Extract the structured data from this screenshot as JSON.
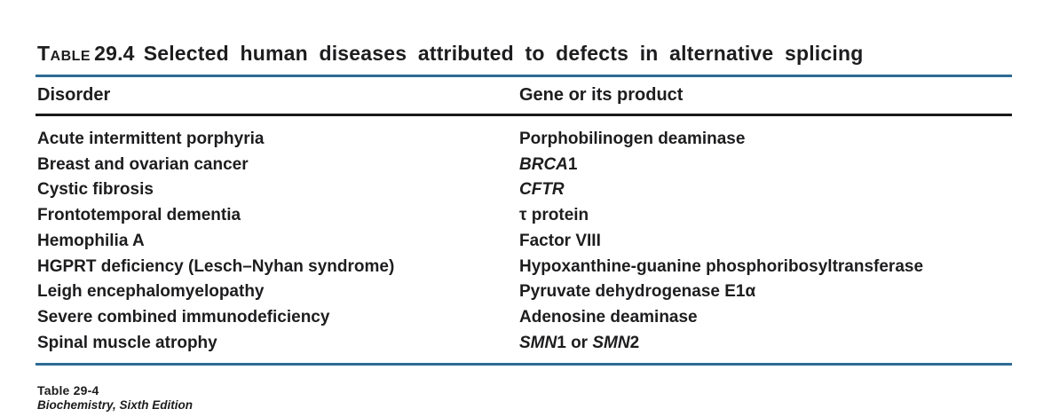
{
  "title": {
    "label": "Table",
    "number": "29.4",
    "text": "Selected human diseases attributed to defects in alternative splicing"
  },
  "table": {
    "columns": [
      {
        "label": "Disorder"
      },
      {
        "label": "Gene or its product"
      }
    ],
    "rows": [
      {
        "disorder": "Acute intermittent porphyria",
        "gene": [
          {
            "text": "Porphobilinogen deaminase"
          }
        ]
      },
      {
        "disorder": "Breast and ovarian cancer",
        "gene": [
          {
            "text": "BRCA",
            "italic": true
          },
          {
            "text": "1"
          }
        ]
      },
      {
        "disorder": "Cystic fibrosis",
        "gene": [
          {
            "text": "CFTR",
            "italic": true
          }
        ]
      },
      {
        "disorder": "Frontotemporal dementia",
        "gene": [
          {
            "text": "τ protein"
          }
        ]
      },
      {
        "disorder": "Hemophilia A",
        "gene": [
          {
            "text": "Factor VIII"
          }
        ]
      },
      {
        "disorder": "HGPRT deficiency (Lesch–Nyhan syndrome)",
        "gene": [
          {
            "text": "Hypoxanthine-guanine phosphoribosyltransferase"
          }
        ]
      },
      {
        "disorder": "Leigh encephalomyelopathy",
        "gene": [
          {
            "text": "Pyruvate dehydrogenase E1α"
          }
        ]
      },
      {
        "disorder": "Severe combined immunodeficiency",
        "gene": [
          {
            "text": "Adenosine deaminase"
          }
        ]
      },
      {
        "disorder": "Spinal muscle atrophy",
        "gene": [
          {
            "text": "SMN",
            "italic": true
          },
          {
            "text": "1 or "
          },
          {
            "text": "SMN",
            "italic": true
          },
          {
            "text": "2"
          }
        ]
      }
    ]
  },
  "footer": {
    "table_ref": "Table 29-4",
    "book": "Biochemistry, Sixth Edition"
  },
  "colors": {
    "accent_rule": "#2d6b94",
    "header_rule": "#1a1a1a",
    "text": "#1d1d1f"
  }
}
